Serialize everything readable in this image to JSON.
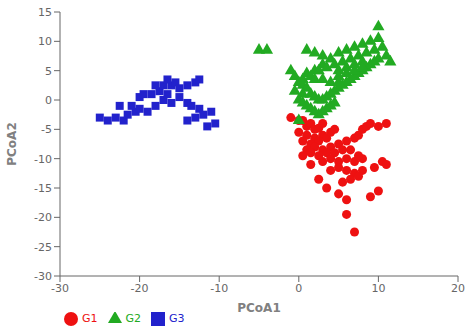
{
  "chart_data": {
    "type": "scatter",
    "xlabel": "PCoA1",
    "ylabel": "PCoA2",
    "xlim": [
      -30,
      20
    ],
    "ylim": [
      -30,
      15
    ],
    "xticks": [
      -30,
      -20,
      -10,
      0,
      10,
      20
    ],
    "yticks": [
      -30,
      -25,
      -20,
      -15,
      -10,
      -5,
      0,
      5,
      10,
      15
    ],
    "grid": false,
    "legend": "lower left",
    "series": [
      {
        "name": "G1",
        "color": "#EE1111",
        "marker": "circle",
        "x": [
          0.5,
          1.0,
          1.5,
          2.0,
          2.5,
          0.0,
          1.0,
          2.0,
          3.0,
          0.5,
          1.5,
          2.5,
          3.5,
          4.0,
          4.5,
          1.0,
          2.0,
          3.0,
          4.0,
          5.0,
          0.5,
          1.5,
          2.5,
          3.5,
          4.5,
          5.5,
          6.0,
          7.0,
          7.5,
          8.0,
          8.5,
          9.0,
          10.0,
          11.0,
          3.0,
          4.0,
          5.0,
          6.0,
          7.0,
          8.0,
          4.0,
          5.0,
          6.0,
          7.0,
          8.0,
          5.5,
          6.5,
          7.5,
          5.0,
          6.0,
          6.0,
          7.0,
          9.0,
          10.0,
          9.5,
          10.5,
          11.0,
          0.0,
          -1.0,
          3.0,
          6.5,
          7.5,
          1.5,
          2.5,
          3.5
        ],
        "values": [
          -3.5,
          -4.5,
          -4.0,
          -5.0,
          -4.8,
          -5.5,
          -6.0,
          -6.5,
          -6.0,
          -7.0,
          -7.5,
          -7.0,
          -6.5,
          -5.5,
          -5.0,
          -8.5,
          -8.0,
          -8.5,
          -8.0,
          -7.5,
          -9.5,
          -9.0,
          -9.5,
          -9.0,
          -9.0,
          -8.5,
          -7.0,
          -6.5,
          -6.0,
          -5.0,
          -4.5,
          -4.0,
          -4.5,
          -4.0,
          -10.5,
          -10.0,
          -10.5,
          -10.0,
          -10.5,
          -10.0,
          -12.0,
          -11.5,
          -12.0,
          -12.5,
          -12.0,
          -14.0,
          -13.5,
          -13.0,
          -16.0,
          -17.0,
          -19.5,
          -22.5,
          -16.5,
          -15.5,
          -11.5,
          -10.5,
          -11.0,
          -3.5,
          -3.0,
          -4.0,
          -8.5,
          -9.5,
          -11.0,
          -13.5,
          -15.0
        ]
      },
      {
        "name": "G2",
        "color": "#22AA22",
        "marker": "triangle",
        "x": [
          -5.0,
          -4.0,
          -1.0,
          -0.5,
          0.0,
          0.5,
          1.0,
          -0.5,
          0.5,
          1.5,
          2.0,
          2.5,
          0.0,
          0.5,
          1.0,
          1.5,
          2.0,
          2.5,
          3.0,
          3.5,
          4.0,
          4.5,
          3.0,
          3.5,
          4.0,
          4.5,
          5.0,
          5.5,
          6.0,
          6.5,
          7.0,
          7.5,
          8.0,
          8.5,
          9.0,
          9.5,
          10.0,
          11.0,
          1.0,
          2.0,
          3.0,
          4.0,
          5.0,
          6.0,
          7.0,
          8.0,
          9.0,
          10.0,
          10.5,
          9.5,
          8.5,
          7.5,
          6.5,
          5.5,
          4.5,
          3.5,
          2.5,
          1.5,
          0.5,
          5.0,
          6.0,
          7.0,
          8.0,
          5.0,
          6.0,
          7.0,
          8.0,
          2.0,
          3.0,
          4.0,
          5.0,
          1.0,
          2.0,
          3.0,
          11.5,
          10.0,
          0.0
        ],
        "values": [
          8.5,
          8.5,
          5.0,
          4.0,
          3.0,
          2.5,
          2.0,
          1.5,
          1.0,
          1.0,
          0.5,
          0.0,
          0.0,
          -0.5,
          -1.0,
          -1.5,
          -2.0,
          -2.5,
          -2.0,
          -1.5,
          -1.0,
          -0.5,
          0.0,
          0.5,
          1.0,
          1.5,
          2.0,
          2.5,
          3.0,
          3.5,
          4.0,
          4.5,
          5.0,
          5.5,
          6.0,
          6.5,
          7.0,
          7.5,
          4.5,
          5.0,
          6.0,
          7.0,
          8.0,
          8.5,
          9.0,
          9.5,
          10.0,
          10.5,
          9.0,
          8.5,
          8.0,
          7.5,
          7.0,
          6.5,
          6.0,
          5.5,
          5.0,
          4.0,
          3.5,
          5.0,
          5.5,
          6.0,
          6.5,
          4.0,
          4.5,
          5.0,
          5.5,
          3.5,
          3.5,
          3.0,
          3.0,
          8.5,
          8.0,
          7.5,
          6.5,
          12.5,
          -3.5
        ]
      },
      {
        "name": "G3",
        "color": "#2222CC",
        "marker": "square",
        "x": [
          -25.0,
          -24.0,
          -23.0,
          -22.0,
          -21.5,
          -20.5,
          -22.5,
          -21.0,
          -20.0,
          -19.0,
          -20.0,
          -19.5,
          -18.5,
          -17.5,
          -18.0,
          -17.0,
          -16.0,
          -15.5,
          -16.5,
          -15.0,
          -14.0,
          -13.5,
          -12.5,
          -14.0,
          -13.0,
          -12.0,
          -11.0,
          -11.5,
          -10.5,
          -16.0,
          -17.0,
          -18.0,
          -15.0,
          -14.0,
          -13.0,
          -12.5,
          -16.5
        ],
        "values": [
          -3.0,
          -3.5,
          -3.0,
          -3.5,
          -2.5,
          -2.0,
          -1.0,
          -1.0,
          -1.5,
          -2.0,
          0.5,
          1.0,
          1.0,
          1.5,
          2.5,
          2.5,
          2.5,
          3.0,
          3.5,
          0.5,
          -0.5,
          -1.0,
          -1.5,
          -3.5,
          -3.0,
          -2.5,
          -2.0,
          -4.5,
          -4.0,
          -0.5,
          0.0,
          -1.0,
          2.0,
          2.5,
          3.0,
          3.5,
          1.0
        ]
      }
    ]
  }
}
